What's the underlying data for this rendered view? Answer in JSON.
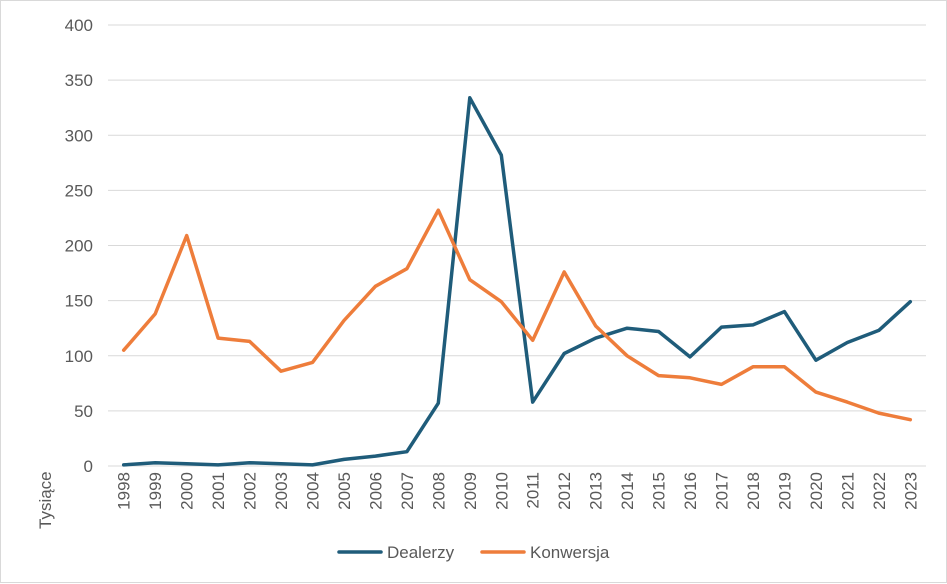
{
  "chart_data": {
    "type": "line",
    "ylabel": "Tysiące",
    "xlabel": "",
    "ylim": [
      0,
      400
    ],
    "yticks": [
      0,
      50,
      100,
      150,
      200,
      250,
      300,
      350,
      400
    ],
    "grid": true,
    "legend_position": "bottom",
    "categories": [
      "1998",
      "1999",
      "2000",
      "2001",
      "2002",
      "2003",
      "2004",
      "2005",
      "2006",
      "2007",
      "2008",
      "2009",
      "2010",
      "2011",
      "2012",
      "2013",
      "2014",
      "2015",
      "2016",
      "2017",
      "2018",
      "2019",
      "2020",
      "2021",
      "2022",
      "2023"
    ],
    "series": [
      {
        "name": "Dealerzy",
        "color": "#1f5c7a",
        "values": [
          1,
          3,
          2,
          1,
          3,
          2,
          1,
          6,
          9,
          13,
          57,
          334,
          282,
          58,
          102,
          116,
          125,
          122,
          99,
          126,
          128,
          140,
          96,
          112,
          123,
          149
        ]
      },
      {
        "name": "Konwersja",
        "color": "#ee7d3b",
        "values": [
          105,
          138,
          209,
          116,
          113,
          86,
          94,
          132,
          163,
          179,
          232,
          169,
          149,
          114,
          176,
          127,
          100,
          82,
          80,
          74,
          90,
          90,
          67,
          58,
          48,
          42
        ]
      }
    ]
  }
}
